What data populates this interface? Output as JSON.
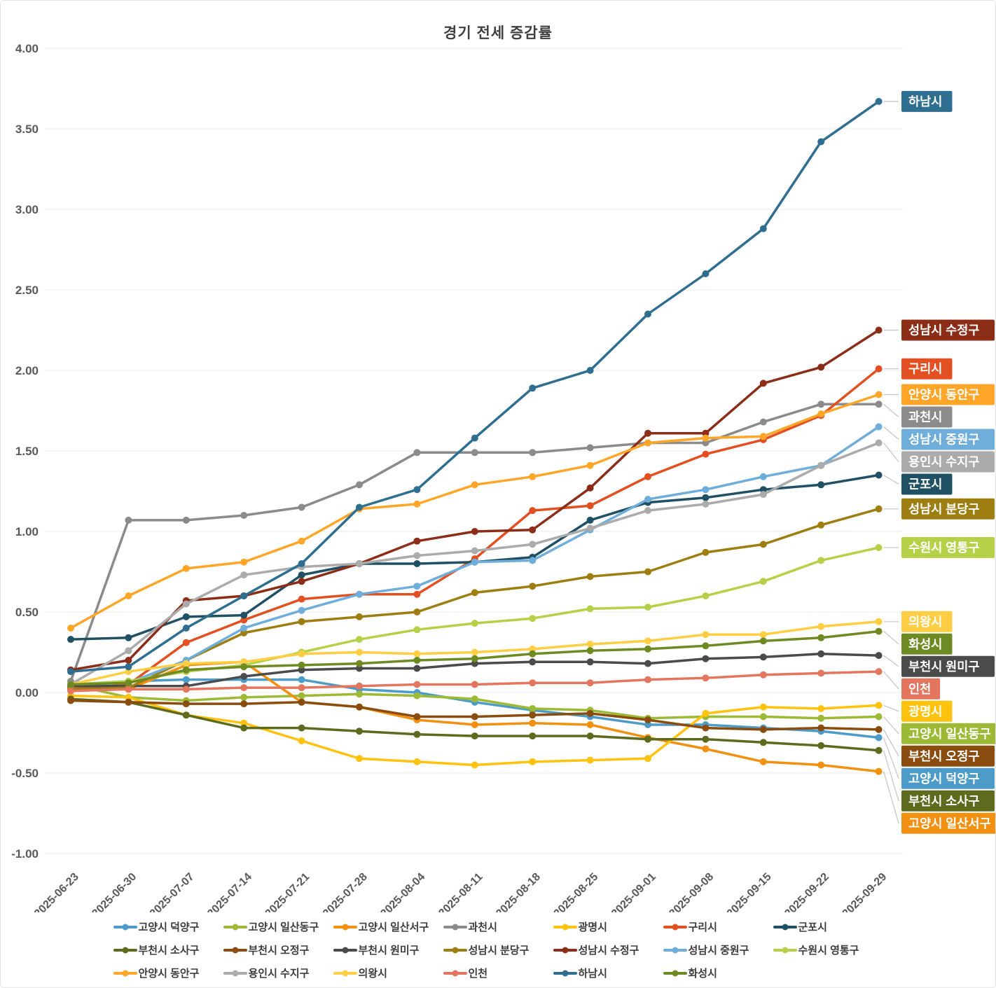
{
  "page": {
    "title": "경기 전세 증감률"
  },
  "chart_data": {
    "type": "line",
    "title": "경기 전세 증감률",
    "x": [
      "2025-06-23",
      "2025-06-30",
      "2025-07-07",
      "2025-07-14",
      "2025-07-21",
      "2025-07-28",
      "2025-08-04",
      "2025-08-11",
      "2025-08-18",
      "2025-08-25",
      "2025-09-01",
      "2025-09-08",
      "2025-09-15",
      "2025-09-22",
      "2025-09-29"
    ],
    "xlabel": "",
    "ylabel": "",
    "ylim": [
      -1.0,
      4.0
    ],
    "ytick_step": 0.5,
    "grid": true,
    "legend_position": "bottom",
    "end_labels": true,
    "series": [
      {
        "name": "고양시 덕양구",
        "color": "#4D9BC9",
        "values": [
          0.05,
          0.07,
          0.08,
          0.08,
          0.08,
          0.02,
          0.0,
          -0.06,
          -0.11,
          -0.15,
          -0.2,
          -0.2,
          -0.22,
          -0.24,
          -0.28
        ]
      },
      {
        "name": "고양시 일산동구",
        "color": "#9CBA36",
        "values": [
          0.05,
          -0.03,
          -0.05,
          -0.03,
          -0.02,
          -0.01,
          -0.02,
          -0.04,
          -0.1,
          -0.11,
          -0.16,
          -0.15,
          -0.15,
          -0.16,
          -0.15
        ]
      },
      {
        "name": "고양시 일산서구",
        "color": "#F29111",
        "values": [
          0.03,
          0.02,
          0.17,
          0.19,
          -0.06,
          -0.09,
          -0.17,
          -0.2,
          -0.19,
          -0.2,
          -0.28,
          -0.35,
          -0.43,
          -0.45,
          -0.49
        ]
      },
      {
        "name": "과천시",
        "color": "#8B8B8B",
        "values": [
          0.07,
          1.07,
          1.07,
          1.1,
          1.15,
          1.29,
          1.49,
          1.49,
          1.49,
          1.52,
          1.55,
          1.55,
          1.68,
          1.79,
          1.79
        ]
      },
      {
        "name": "광명시",
        "color": "#FFC20E",
        "values": [
          -0.02,
          -0.03,
          -0.14,
          -0.19,
          -0.3,
          -0.41,
          -0.43,
          -0.45,
          -0.43,
          -0.42,
          -0.41,
          -0.13,
          -0.09,
          -0.1,
          -0.08
        ]
      },
      {
        "name": "구리시",
        "color": "#E25022",
        "values": [
          0.02,
          0.05,
          0.31,
          0.45,
          0.58,
          0.61,
          0.61,
          0.83,
          1.13,
          1.16,
          1.34,
          1.48,
          1.57,
          1.72,
          2.01
        ]
      },
      {
        "name": "군포시",
        "color": "#1F5064",
        "values": [
          0.33,
          0.34,
          0.47,
          0.48,
          0.73,
          0.8,
          0.8,
          0.81,
          0.84,
          1.07,
          1.18,
          1.21,
          1.26,
          1.29,
          1.35
        ]
      },
      {
        "name": "부천시 소사구",
        "color": "#5E6A1E",
        "values": [
          -0.04,
          -0.06,
          -0.14,
          -0.22,
          -0.22,
          -0.24,
          -0.26,
          -0.27,
          -0.27,
          -0.27,
          -0.29,
          -0.29,
          -0.31,
          -0.33,
          -0.36
        ]
      },
      {
        "name": "부천시 오정구",
        "color": "#8A4D0F",
        "values": [
          -0.05,
          -0.06,
          -0.07,
          -0.07,
          -0.06,
          -0.09,
          -0.15,
          -0.15,
          -0.14,
          -0.13,
          -0.17,
          -0.22,
          -0.23,
          -0.22,
          -0.23
        ]
      },
      {
        "name": "부천시 원미구",
        "color": "#4B4B4B",
        "values": [
          0.04,
          0.04,
          0.04,
          0.1,
          0.14,
          0.15,
          0.15,
          0.18,
          0.19,
          0.19,
          0.18,
          0.21,
          0.22,
          0.24,
          0.23
        ]
      },
      {
        "name": "성남시 분당구",
        "color": "#9E7E10",
        "values": [
          0.02,
          0.03,
          0.2,
          0.37,
          0.44,
          0.47,
          0.5,
          0.62,
          0.66,
          0.72,
          0.75,
          0.87,
          0.92,
          1.04,
          1.14
        ]
      },
      {
        "name": "성남시 수정구",
        "color": "#8C2D17",
        "values": [
          0.14,
          0.2,
          0.57,
          0.6,
          0.69,
          0.8,
          0.94,
          1.0,
          1.01,
          1.27,
          1.61,
          1.61,
          1.92,
          2.02,
          2.25
        ]
      },
      {
        "name": "성남시 중원구",
        "color": "#6FADDB",
        "values": [
          0.05,
          0.06,
          0.2,
          0.4,
          0.51,
          0.61,
          0.66,
          0.81,
          0.82,
          1.01,
          1.2,
          1.26,
          1.34,
          1.41,
          1.65
        ]
      },
      {
        "name": "수원시 영통구",
        "color": "#B4D147",
        "values": [
          0.05,
          0.07,
          0.13,
          0.17,
          0.25,
          0.33,
          0.39,
          0.43,
          0.46,
          0.52,
          0.53,
          0.6,
          0.69,
          0.82,
          0.9
        ]
      },
      {
        "name": "안양시 동안구",
        "color": "#FFA629",
        "values": [
          0.4,
          0.6,
          0.77,
          0.81,
          0.94,
          1.14,
          1.17,
          1.29,
          1.34,
          1.41,
          1.55,
          1.58,
          1.59,
          1.73,
          1.85
        ]
      },
      {
        "name": "용인시 수지구",
        "color": "#ABABAB",
        "values": [
          0.05,
          0.26,
          0.55,
          0.73,
          0.78,
          0.8,
          0.85,
          0.88,
          0.92,
          1.02,
          1.13,
          1.17,
          1.23,
          1.41,
          1.55
        ]
      },
      {
        "name": "의왕시",
        "color": "#FFCE45",
        "values": [
          0.05,
          0.13,
          0.18,
          0.19,
          0.24,
          0.25,
          0.24,
          0.25,
          0.27,
          0.3,
          0.32,
          0.36,
          0.36,
          0.41,
          0.44
        ]
      },
      {
        "name": "인천",
        "color": "#E47660",
        "values": [
          0.01,
          0.02,
          0.02,
          0.03,
          0.03,
          0.04,
          0.05,
          0.05,
          0.06,
          0.06,
          0.08,
          0.09,
          0.11,
          0.12,
          0.13
        ]
      },
      {
        "name": "하남시",
        "color": "#2E6E91",
        "values": [
          0.13,
          0.16,
          0.4,
          0.6,
          0.8,
          1.15,
          1.26,
          1.58,
          1.89,
          2.0,
          2.35,
          2.6,
          2.88,
          3.42,
          3.67
        ]
      },
      {
        "name": "화성시",
        "color": "#6E8B23",
        "values": [
          0.05,
          0.06,
          0.14,
          0.16,
          0.17,
          0.18,
          0.2,
          0.21,
          0.24,
          0.26,
          0.27,
          0.29,
          0.32,
          0.34,
          0.38
        ]
      }
    ]
  }
}
